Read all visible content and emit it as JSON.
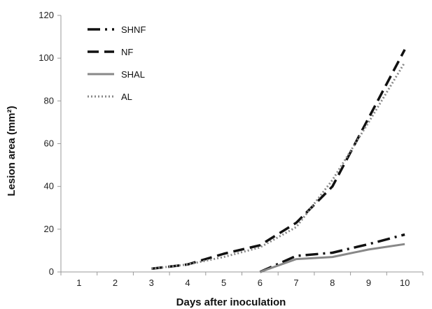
{
  "chart_data": {
    "type": "line",
    "title": "",
    "xlabel": "Days after inoculation",
    "ylabel": "Lesion area (mm²)",
    "x": [
      1,
      2,
      3,
      4,
      5,
      6,
      7,
      8,
      9,
      10
    ],
    "xlim": [
      0.5,
      10.5
    ],
    "ylim": [
      0,
      120
    ],
    "yticks": [
      0,
      20,
      40,
      60,
      80,
      100,
      120
    ],
    "grid": false,
    "legend_position": "top-left",
    "series": [
      {
        "name": "SHNF",
        "style": "dash-dot",
        "color": "#111111",
        "points": [
          [
            6,
            0
          ],
          [
            7,
            7.5
          ],
          [
            8,
            9
          ],
          [
            9,
            13
          ],
          [
            10,
            17.5
          ]
        ]
      },
      {
        "name": "NF",
        "style": "dash",
        "color": "#111111",
        "points": [
          [
            3,
            1.5
          ],
          [
            4,
            3.5
          ],
          [
            5,
            8.5
          ],
          [
            6,
            12.5
          ],
          [
            7,
            23
          ],
          [
            8,
            40
          ],
          [
            9,
            72
          ],
          [
            10,
            104
          ]
        ]
      },
      {
        "name": "SHAL",
        "style": "solid",
        "color": "#888888",
        "points": [
          [
            6,
            0
          ],
          [
            7,
            6
          ],
          [
            8,
            7
          ],
          [
            9,
            10.5
          ],
          [
            10,
            13
          ]
        ]
      },
      {
        "name": "AL",
        "style": "dotted",
        "color": "#888888",
        "points": [
          [
            3,
            1.5
          ],
          [
            4,
            3.5
          ],
          [
            5,
            7
          ],
          [
            6,
            11.5
          ],
          [
            7,
            21
          ],
          [
            8,
            43
          ],
          [
            9,
            70
          ],
          [
            10,
            98
          ]
        ]
      }
    ]
  }
}
